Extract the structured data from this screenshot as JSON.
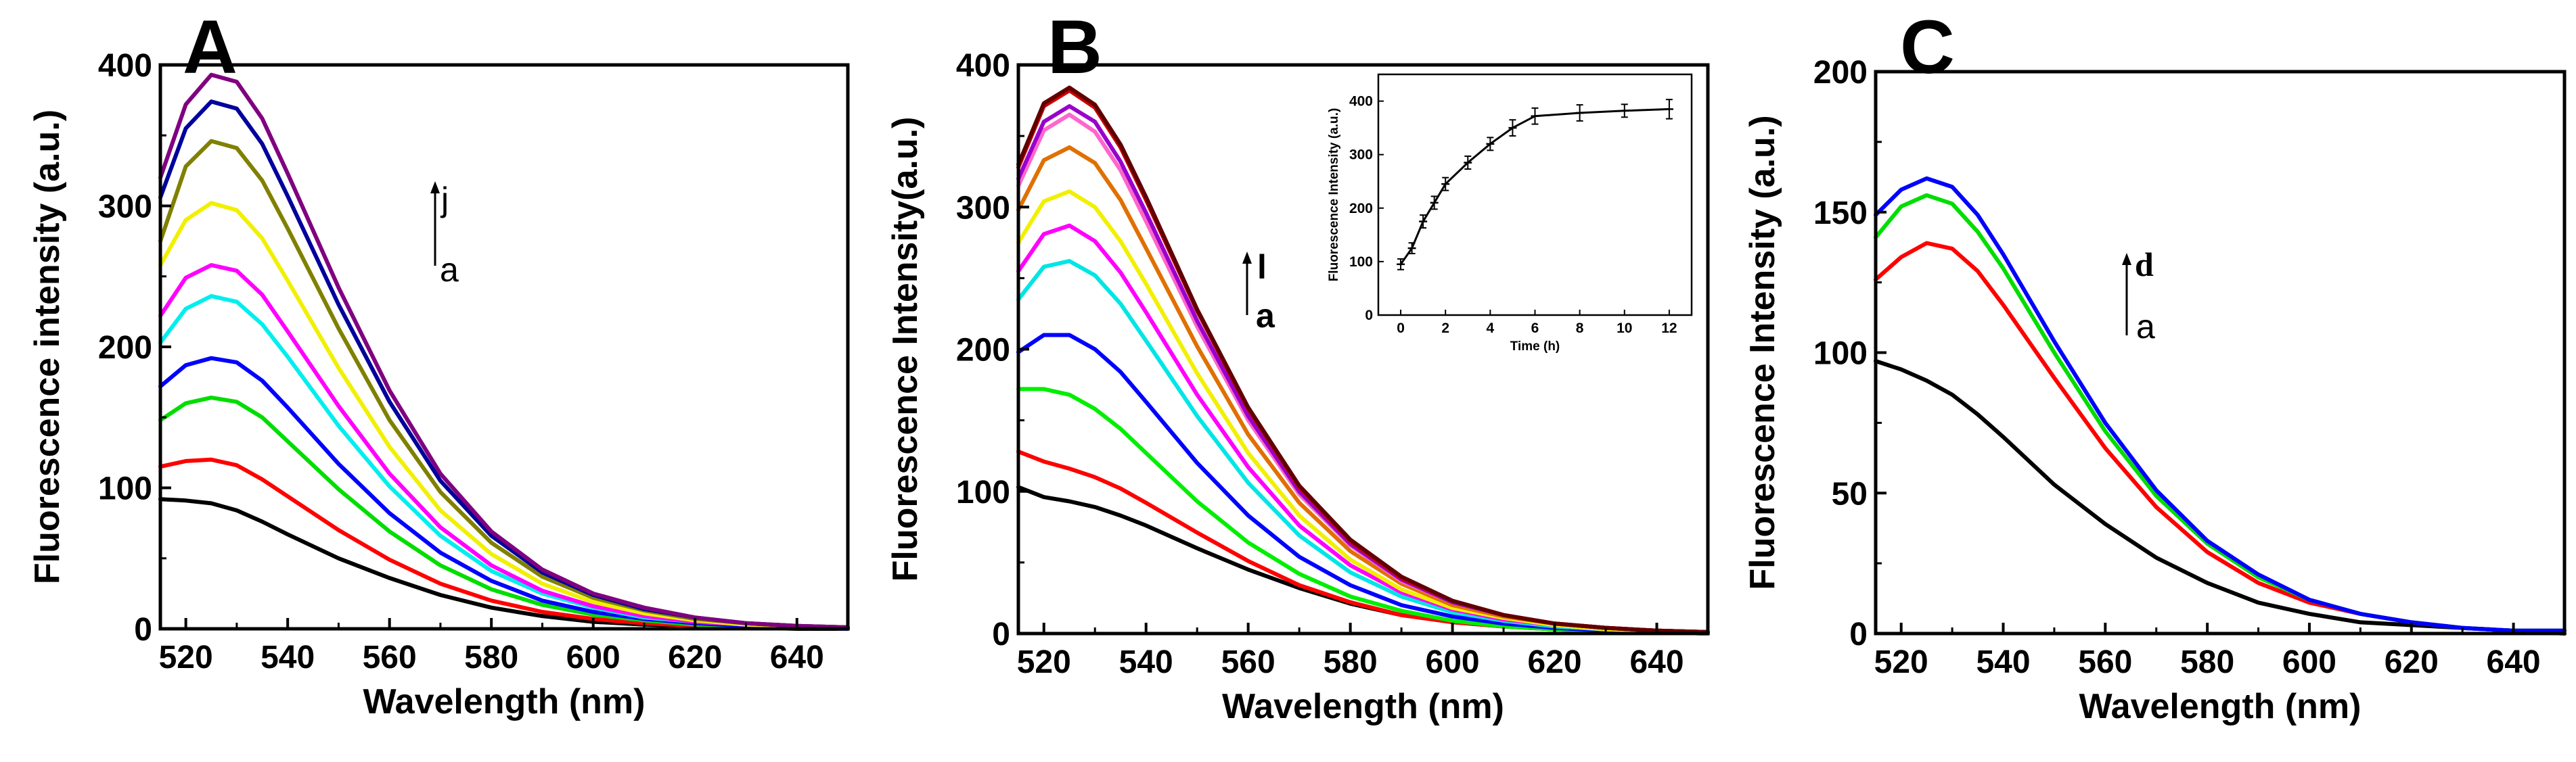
{
  "chart_data": [
    {
      "panel": "A",
      "type": "line",
      "title": "A",
      "xlabel": "Wavelength (nm)",
      "ylabel": "Fluorescence intensity (a.u.)",
      "xlim": [
        515,
        650
      ],
      "ylim": [
        0,
        400
      ],
      "xticks": [
        "520",
        "540",
        "560",
        "580",
        "600",
        "620",
        "640"
      ],
      "yticks": [
        "0",
        "100",
        "200",
        "300",
        "400"
      ],
      "arrow_label_top": "j",
      "arrow_label_bottom": "a",
      "x": [
        515,
        520,
        525,
        530,
        535,
        540,
        550,
        560,
        570,
        580,
        590,
        600,
        610,
        620,
        630,
        640,
        650
      ],
      "series": [
        {
          "name": "a",
          "color": "#000000",
          "values": [
            92,
            91,
            89,
            84,
            76,
            67,
            50,
            36,
            24,
            15,
            9,
            5,
            3,
            2,
            1,
            0,
            0
          ]
        },
        {
          "name": "b",
          "color": "#ff0000",
          "values": [
            115,
            119,
            120,
            116,
            106,
            94,
            70,
            49,
            32,
            20,
            12,
            7,
            4,
            2,
            1,
            1,
            0
          ]
        },
        {
          "name": "c",
          "color": "#00dd00",
          "values": [
            148,
            160,
            164,
            161,
            150,
            133,
            99,
            69,
            45,
            28,
            17,
            10,
            6,
            3,
            2,
            1,
            0
          ]
        },
        {
          "name": "d",
          "color": "#0000ff",
          "values": [
            172,
            187,
            192,
            189,
            176,
            157,
            117,
            82,
            54,
            34,
            20,
            12,
            7,
            4,
            2,
            1,
            0
          ]
        },
        {
          "name": "e",
          "color": "#00eeee",
          "values": [
            203,
            227,
            236,
            232,
            216,
            193,
            144,
            101,
            66,
            41,
            25,
            15,
            8,
            5,
            3,
            1,
            1
          ]
        },
        {
          "name": "f",
          "color": "#ff00ff",
          "values": [
            222,
            249,
            258,
            254,
            237,
            211,
            158,
            110,
            72,
            45,
            27,
            16,
            9,
            5,
            3,
            1,
            1
          ]
        },
        {
          "name": "g",
          "color": "#f0f000",
          "values": [
            258,
            290,
            302,
            297,
            277,
            247,
            185,
            129,
            84,
            53,
            32,
            19,
            11,
            6,
            3,
            2,
            1
          ]
        },
        {
          "name": "h",
          "color": "#808000",
          "values": [
            275,
            328,
            346,
            341,
            318,
            284,
            213,
            148,
            97,
            61,
            37,
            22,
            13,
            7,
            4,
            2,
            1
          ]
        },
        {
          "name": "i",
          "color": "#00009c",
          "values": [
            306,
            355,
            374,
            369,
            344,
            307,
            230,
            161,
            105,
            66,
            40,
            24,
            14,
            8,
            4,
            2,
            1
          ]
        },
        {
          "name": "j",
          "color": "#800080",
          "values": [
            320,
            372,
            393,
            388,
            362,
            323,
            242,
            169,
            110,
            69,
            42,
            25,
            15,
            8,
            4,
            2,
            1
          ]
        }
      ]
    },
    {
      "panel": "B",
      "type": "line",
      "title": "B",
      "xlabel": "Wavelength (nm)",
      "ylabel": "Fluorescence Intensity(a.u.)",
      "xlim": [
        515,
        650
      ],
      "ylim": [
        0,
        400
      ],
      "xticks": [
        "520",
        "540",
        "560",
        "580",
        "600",
        "620",
        "640"
      ],
      "yticks": [
        "0",
        "100",
        "200",
        "300",
        "400"
      ],
      "arrow_label_top": "l",
      "arrow_label_bottom": "a",
      "x": [
        515,
        520,
        525,
        530,
        535,
        540,
        550,
        560,
        570,
        580,
        590,
        600,
        610,
        620,
        630,
        640,
        650
      ],
      "series": [
        {
          "name": "a",
          "color": "#000000",
          "values": [
            103,
            96,
            93,
            89,
            83,
            76,
            60,
            45,
            32,
            21,
            13,
            8,
            5,
            3,
            2,
            1,
            0
          ]
        },
        {
          "name": "b",
          "color": "#ff0000",
          "values": [
            128,
            121,
            116,
            110,
            102,
            92,
            71,
            51,
            34,
            22,
            13,
            8,
            5,
            3,
            2,
            1,
            0
          ]
        },
        {
          "name": "c",
          "color": "#00ee00",
          "values": [
            172,
            172,
            168,
            158,
            144,
            127,
            93,
            64,
            42,
            26,
            16,
            9,
            5,
            3,
            2,
            1,
            0
          ]
        },
        {
          "name": "d",
          "color": "#0000ff",
          "values": [
            198,
            210,
            210,
            200,
            184,
            163,
            120,
            83,
            54,
            34,
            20,
            12,
            7,
            4,
            2,
            1,
            1
          ]
        },
        {
          "name": "e",
          "color": "#00e5e5",
          "values": [
            235,
            258,
            262,
            252,
            232,
            206,
            153,
            106,
            69,
            43,
            26,
            15,
            9,
            5,
            3,
            2,
            1
          ]
        },
        {
          "name": "f",
          "color": "#ff00ff",
          "values": [
            255,
            281,
            287,
            276,
            254,
            226,
            168,
            117,
            76,
            48,
            29,
            17,
            10,
            6,
            3,
            2,
            1
          ]
        },
        {
          "name": "g",
          "color": "#f0f000",
          "values": [
            275,
            304,
            311,
            300,
            276,
            246,
            183,
            127,
            83,
            52,
            31,
            18,
            11,
            6,
            3,
            2,
            1
          ]
        },
        {
          "name": "h",
          "color": "#e07000",
          "values": [
            298,
            333,
            342,
            331,
            305,
            271,
            202,
            140,
            92,
            58,
            35,
            20,
            12,
            7,
            4,
            2,
            1
          ]
        },
        {
          "name": "i",
          "color": "#ff66cc",
          "values": [
            315,
            354,
            365,
            353,
            326,
            290,
            216,
            150,
            98,
            62,
            37,
            22,
            13,
            7,
            4,
            2,
            1
          ]
        },
        {
          "name": "j",
          "color": "#9900cc",
          "values": [
            320,
            360,
            371,
            360,
            332,
            296,
            220,
            153,
            100,
            63,
            38,
            22,
            13,
            7,
            4,
            2,
            1
          ]
        },
        {
          "name": "k",
          "color": "#cc0000",
          "values": [
            328,
            371,
            382,
            370,
            342,
            305,
            227,
            158,
            103,
            65,
            39,
            23,
            13,
            7,
            4,
            2,
            1
          ]
        },
        {
          "name": "l",
          "color": "#600000",
          "values": [
            330,
            373,
            384,
            372,
            344,
            307,
            228,
            159,
            104,
            66,
            40,
            23,
            13,
            7,
            4,
            2,
            1
          ]
        }
      ],
      "inset": {
        "type": "line",
        "xlabel": "Time (h)",
        "ylabel": "Fluorescence Intensity (a.u.)",
        "xlim": [
          -1,
          13
        ],
        "ylim": [
          0,
          450
        ],
        "xticks": [
          "0",
          "2",
          "4",
          "6",
          "8",
          "10",
          "12"
        ],
        "yticks": [
          "0",
          "100",
          "200",
          "300",
          "400"
        ],
        "x": [
          0,
          0.5,
          1,
          1.5,
          2,
          3,
          4,
          5,
          6,
          8,
          10,
          12
        ],
        "values": [
          95,
          125,
          175,
          210,
          245,
          285,
          320,
          350,
          372,
          378,
          382,
          385
        ],
        "errors": [
          10,
          10,
          12,
          12,
          12,
          12,
          12,
          15,
          15,
          15,
          12,
          18
        ]
      }
    },
    {
      "panel": "C",
      "type": "line",
      "title": "C",
      "xlabel": "Wavelength (nm)",
      "ylabel": "Fluorescence Intensity (a.u.)",
      "xlim": [
        515,
        650
      ],
      "ylim": [
        0,
        200
      ],
      "xticks": [
        "520",
        "540",
        "560",
        "580",
        "600",
        "620",
        "640"
      ],
      "yticks": [
        "0",
        "50",
        "100",
        "150",
        "200"
      ],
      "arrow_label_top": "d",
      "arrow_label_bottom": "a",
      "x": [
        515,
        520,
        525,
        530,
        535,
        540,
        550,
        560,
        570,
        580,
        590,
        600,
        610,
        620,
        630,
        640,
        650
      ],
      "series": [
        {
          "name": "a",
          "color": "#000000",
          "values": [
            97,
            94,
            90,
            85,
            78,
            70,
            53,
            39,
            27,
            18,
            11,
            7,
            4,
            3,
            2,
            1,
            0
          ]
        },
        {
          "name": "b",
          "color": "#ff0000",
          "values": [
            126,
            134,
            139,
            137,
            129,
            117,
            91,
            66,
            45,
            29,
            18,
            11,
            7,
            4,
            2,
            1,
            1
          ]
        },
        {
          "name": "c",
          "color": "#00dd00",
          "values": [
            141,
            152,
            156,
            153,
            143,
            130,
            100,
            72,
            49,
            32,
            20,
            12,
            7,
            4,
            2,
            1,
            1
          ]
        },
        {
          "name": "d",
          "color": "#0000ff",
          "values": [
            149,
            158,
            162,
            159,
            149,
            135,
            104,
            75,
            51,
            33,
            21,
            12,
            7,
            4,
            2,
            1,
            1
          ]
        }
      ]
    }
  ]
}
